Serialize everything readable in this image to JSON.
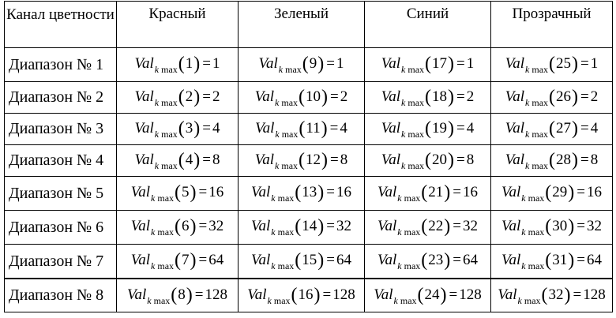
{
  "header": {
    "channel_label": "Канал цветности",
    "columns": [
      "Красный",
      "Зеленый",
      "Синий",
      "Прозрачный"
    ]
  },
  "formula": {
    "base": "Val",
    "sub_k": "k",
    "sub_max": "max",
    "open": "(",
    "close": ")",
    "eq": "="
  },
  "rows": [
    {
      "label": "Диапазон № 1",
      "cells": [
        {
          "n": "1",
          "v": "1"
        },
        {
          "n": "9",
          "v": "1"
        },
        {
          "n": "17",
          "v": "1"
        },
        {
          "n": "25",
          "v": "1"
        }
      ]
    },
    {
      "label": "Диапазон № 2",
      "cells": [
        {
          "n": "2",
          "v": "2"
        },
        {
          "n": "10",
          "v": "2"
        },
        {
          "n": "18",
          "v": "2"
        },
        {
          "n": "26",
          "v": "2"
        }
      ]
    },
    {
      "label": "Диапазон № 3",
      "cells": [
        {
          "n": "3",
          "v": "4"
        },
        {
          "n": "11",
          "v": "4"
        },
        {
          "n": "19",
          "v": "4"
        },
        {
          "n": "27",
          "v": "4"
        }
      ]
    },
    {
      "label": "Диапазон № 4",
      "cells": [
        {
          "n": "4",
          "v": "8"
        },
        {
          "n": "12",
          "v": "8"
        },
        {
          "n": "20",
          "v": "8"
        },
        {
          "n": "28",
          "v": "8"
        }
      ]
    },
    {
      "label": "Диапазон № 5",
      "cells": [
        {
          "n": "5",
          "v": "16"
        },
        {
          "n": "13",
          "v": "16"
        },
        {
          "n": "21",
          "v": "16"
        },
        {
          "n": "29",
          "v": "16"
        }
      ]
    },
    {
      "label": "Диапазон № 6",
      "cells": [
        {
          "n": "6",
          "v": "32"
        },
        {
          "n": "14",
          "v": "32"
        },
        {
          "n": "22",
          "v": "32"
        },
        {
          "n": "30",
          "v": "32"
        }
      ]
    },
    {
      "label": "Диапазон № 7",
      "cells": [
        {
          "n": "7",
          "v": "64"
        },
        {
          "n": "15",
          "v": "64"
        },
        {
          "n": "23",
          "v": "64"
        },
        {
          "n": "31",
          "v": "64"
        }
      ]
    },
    {
      "label": "Диапазон № 8",
      "cells": [
        {
          "n": "8",
          "v": "128"
        },
        {
          "n": "16",
          "v": "128"
        },
        {
          "n": "24",
          "v": "128"
        },
        {
          "n": "32",
          "v": "128"
        }
      ]
    }
  ]
}
